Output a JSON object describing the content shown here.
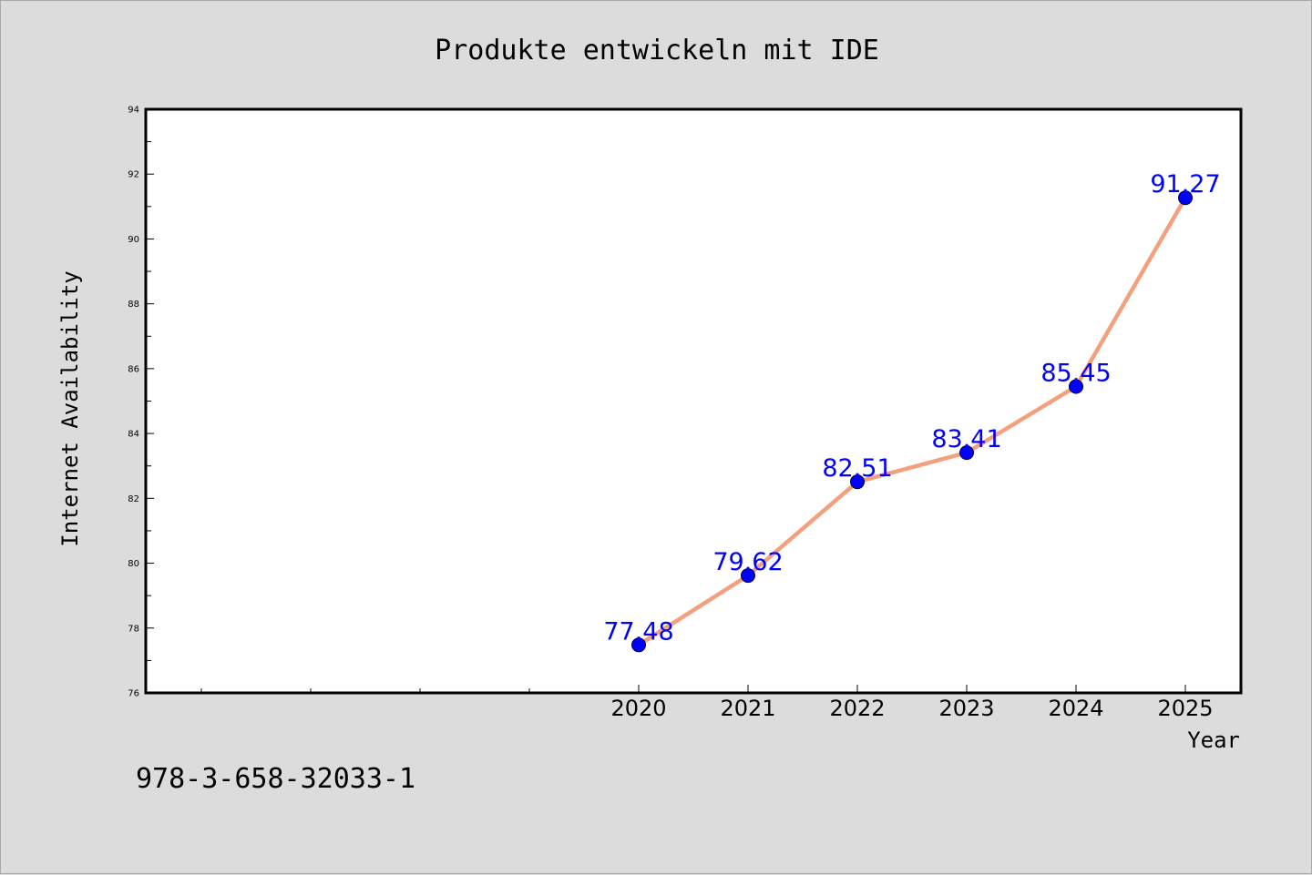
{
  "chart_data": {
    "type": "line",
    "title": "Produkte entwickeln mit IDE",
    "xlabel": "Year",
    "ylabel": "Internet Availability",
    "x": [
      "2020",
      "2021",
      "2022",
      "2023",
      "2024",
      "2025"
    ],
    "series": [
      {
        "values": [
          77.48,
          79.62,
          82.51,
          83.41,
          85.45,
          91.27
        ],
        "labels": [
          "77.48",
          "79.62",
          "82.51",
          "83.41",
          "85.45",
          "91.27"
        ]
      }
    ],
    "ylim": [
      76,
      94
    ],
    "yticks": [
      "76",
      "78",
      "80",
      "82",
      "84",
      "86",
      "88",
      "90",
      "92",
      "94"
    ],
    "grid": false,
    "line_color": "#f4a07e",
    "marker_color": "#0000ff",
    "label_color": "#0000ff",
    "plot_background": "#ffffff",
    "figure_background": "#dcdcdc"
  },
  "footer": {
    "isbn": "978-3-658-32033-1"
  }
}
